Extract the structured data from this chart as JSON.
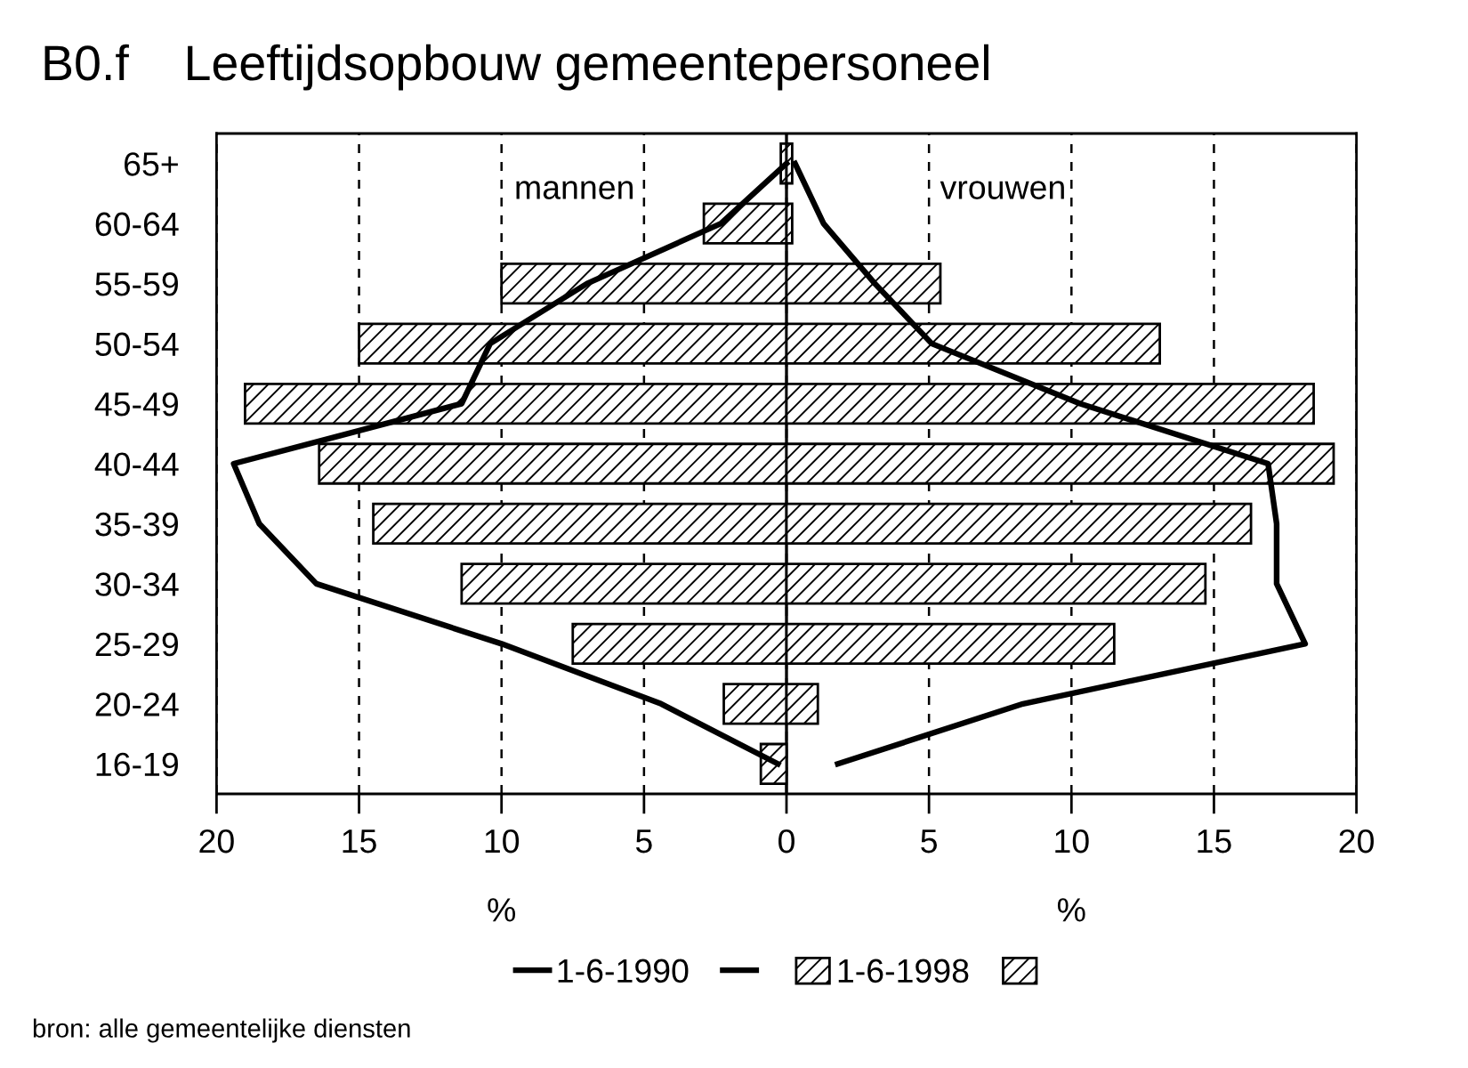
{
  "chart_data": {
    "type": "bar",
    "orientation": "horizontal",
    "stacked": true,
    "title": "B0.f    Leeftijdsopbouw gemeentepersoneel",
    "xlabel": "%",
    "categories": [
      "65+",
      "60-64",
      "55-59",
      "50-54",
      "45-49",
      "40-44",
      "35-39",
      "30-34",
      "25-29",
      "20-24",
      "16-19"
    ],
    "series": [
      {
        "name": "1-6-1990",
        "type": "line",
        "color": "#000000",
        "values": [
          0.0,
          -2.3,
          -7.0,
          -10.4,
          -11.4,
          -19.4,
          -18.5,
          -16.5,
          -10.0,
          -4.4,
          -0.3
        ]
      },
      {
        "type": "line",
        "color": "#000000",
        "values": [
          0.3,
          1.3,
          3.1,
          5.1,
          10.3,
          16.9,
          17.2,
          17.2,
          18.2,
          8.3,
          1.8
        ]
      },
      {
        "name": "1-6-1998",
        "color": "#000000",
        "values": [
          -0.2,
          -2.9,
          -10.0,
          -15.0,
          -19.0,
          -16.4,
          -14.5,
          -11.4,
          -7.5,
          -2.2,
          -0.9
        ]
      },
      {
        "color": "#000000",
        "values": [
          0.2,
          0.2,
          5.4,
          13.1,
          18.5,
          19.2,
          16.3,
          14.7,
          11.5,
          1.1,
          null
        ]
      }
    ],
    "xlim": [
      -20,
      20
    ],
    "xticks": [
      {
        "value": -20,
        "label": "20"
      },
      {
        "value": -15,
        "label": "15"
      },
      {
        "value": -10,
        "label": "10"
      },
      {
        "value": -5,
        "label": "5"
      },
      0,
      5,
      10,
      15,
      20
    ],
    "grid": "x",
    "ref_lines": [
      {
        "axis": "x",
        "value": 0
      }
    ],
    "legend": "bottom",
    "line_style": "solid",
    "annotations": [
      "mannen",
      "vrouwen",
      "bron: alle gemeentelijke diensten"
    ]
  }
}
